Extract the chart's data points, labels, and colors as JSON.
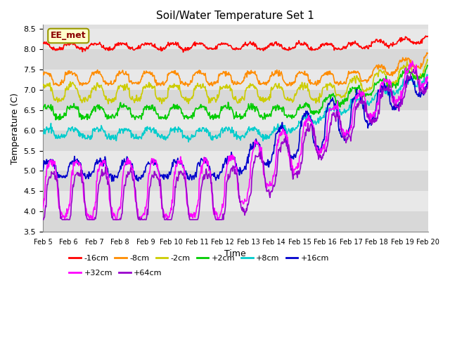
{
  "title": "Soil/Water Temperature Set 1",
  "xlabel": "Time",
  "ylabel": "Temperature (C)",
  "ylim": [
    3.5,
    8.6
  ],
  "annotation": "EE_met",
  "plot_bg": "#e0e0e0",
  "tick_labels": [
    "Feb 5",
    "Feb 6",
    "Feb 7",
    "Feb 8",
    "Feb 9",
    "Feb 10",
    "Feb 11",
    "Feb 12",
    "Feb 13",
    "Feb 14",
    "Feb 15",
    "Feb 16",
    "Feb 17",
    "Feb 18",
    "Feb 19",
    "Feb 20"
  ],
  "series": [
    {
      "label": "-16cm",
      "color": "#ff0000"
    },
    {
      "label": "-8cm",
      "color": "#ff8c00"
    },
    {
      "label": "-2cm",
      "color": "#cccc00"
    },
    {
      "label": "+2cm",
      "color": "#00cc00"
    },
    {
      "label": "+8cm",
      "color": "#00cccc"
    },
    {
      "label": "+16cm",
      "color": "#0000cc"
    },
    {
      "label": "+32cm",
      "color": "#ff00ff"
    },
    {
      "label": "+64cm",
      "color": "#9900cc"
    }
  ],
  "n_points": 720,
  "yticks": [
    3.5,
    4.0,
    4.5,
    5.0,
    5.5,
    6.0,
    6.5,
    7.0,
    7.5,
    8.0,
    8.5
  ]
}
